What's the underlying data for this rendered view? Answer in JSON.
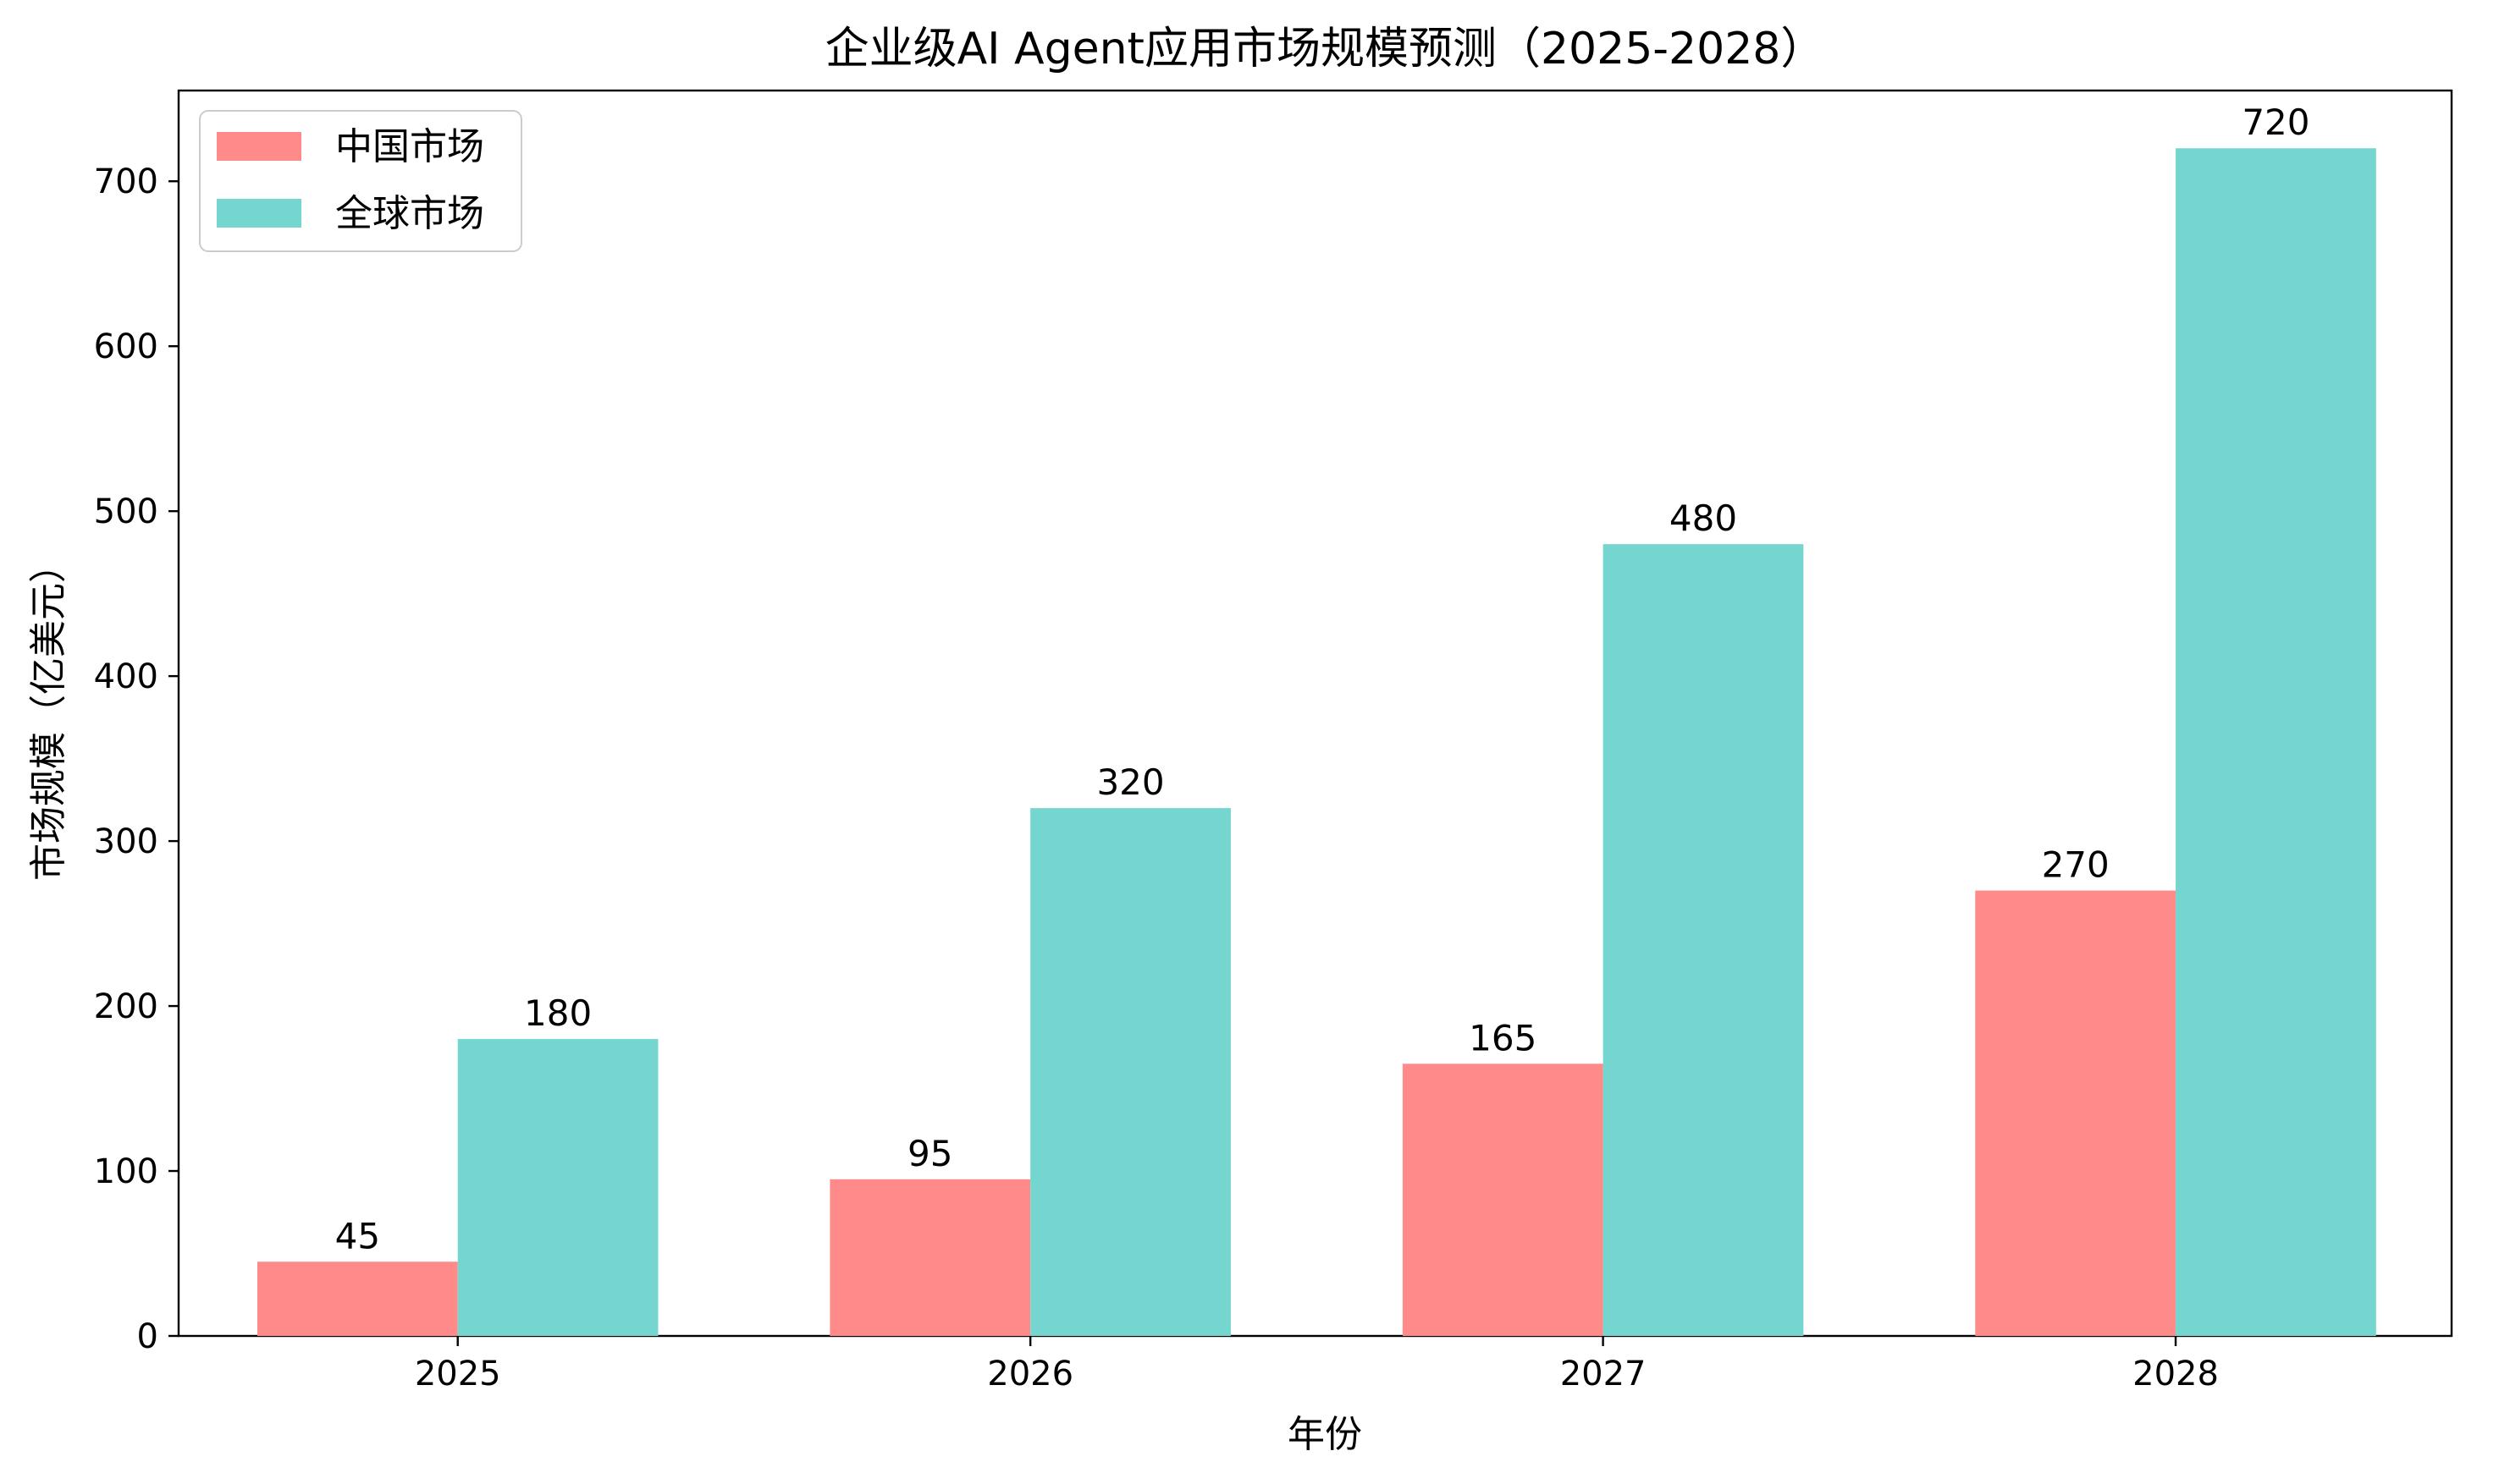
{
  "chart_data": {
    "type": "bar",
    "title": "企业级AI Agent应用市场规模预测（2025-2028）",
    "xlabel": "年份",
    "ylabel": "市场规模（亿美元）",
    "categories": [
      "2025",
      "2026",
      "2027",
      "2028"
    ],
    "series": [
      {
        "name": "中国市场",
        "color": "#FF8A8A",
        "values": [
          45,
          95,
          165,
          270
        ]
      },
      {
        "name": "全球市场",
        "color": "#74D6CF",
        "values": [
          180,
          320,
          480,
          720
        ]
      }
    ],
    "ylim": [
      0,
      755
    ],
    "yticks": [
      0,
      100,
      200,
      300,
      400,
      500,
      600,
      700
    ],
    "legend_position": "top-left",
    "grid": false
  }
}
